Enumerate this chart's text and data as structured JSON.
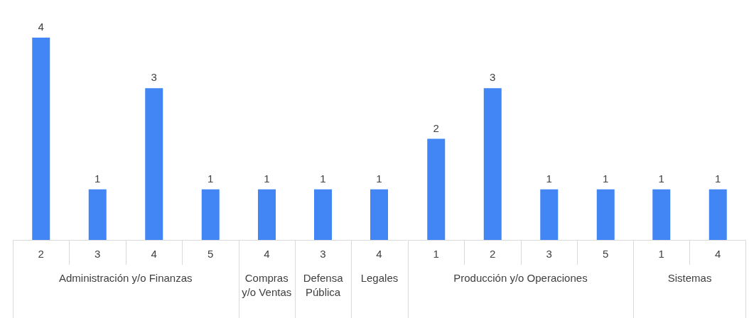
{
  "chart_data": [
    {
      "type": "bar",
      "xlabel": "Administración y/o Finanzas",
      "categories": [
        "2",
        "3",
        "4",
        "5"
      ],
      "values": [
        4,
        1,
        3,
        1
      ],
      "color": "#4285f4",
      "data_labels": true
    },
    {
      "type": "bar",
      "xlabel": "Compras y/o Ventas",
      "categories": [
        "4"
      ],
      "values": [
        1
      ],
      "color": "#4285f4",
      "data_labels": true
    },
    {
      "type": "bar",
      "xlabel": "Defensa Pública",
      "categories": [
        "3"
      ],
      "values": [
        1
      ],
      "color": "#4285f4",
      "data_labels": true
    },
    {
      "type": "bar",
      "xlabel": "Legales",
      "categories": [
        "4"
      ],
      "values": [
        1
      ],
      "color": "#4285f4",
      "data_labels": true
    },
    {
      "type": "bar",
      "xlabel": "Producción y/o Operaciones",
      "categories": [
        "1",
        "2",
        "3",
        "5"
      ],
      "values": [
        2,
        3,
        1,
        1
      ],
      "color": "#4285f4",
      "data_labels": true
    },
    {
      "type": "bar",
      "xlabel": "Sistemas",
      "categories": [
        "1",
        "4"
      ],
      "values": [
        1,
        1
      ],
      "color": "#4285f4",
      "data_labels": true
    }
  ]
}
